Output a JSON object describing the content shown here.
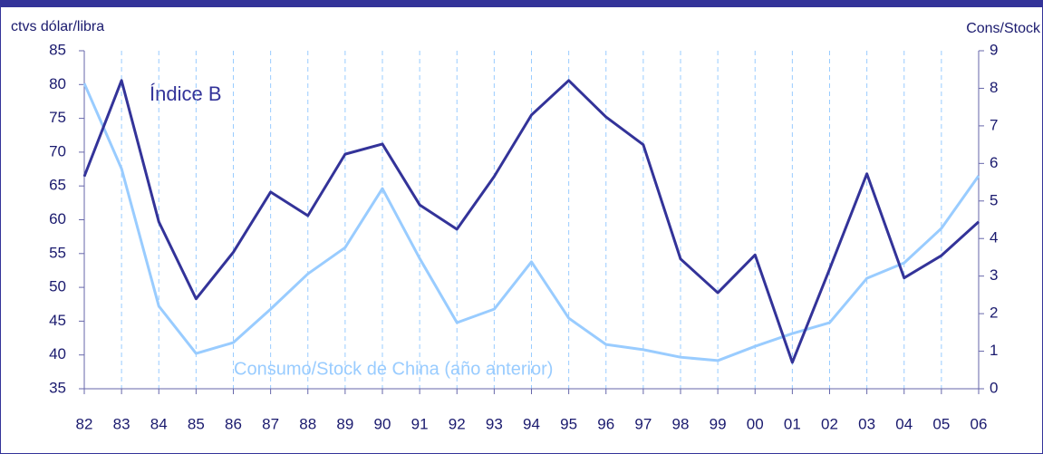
{
  "chart_data": {
    "type": "line",
    "ylabel": "ctvs dólar/libra",
    "y2label": "Cons/Stock",
    "categories": [
      "82",
      "83",
      "84",
      "85",
      "86",
      "87",
      "88",
      "89",
      "90",
      "91",
      "92",
      "93",
      "94",
      "95",
      "96",
      "97",
      "98",
      "99",
      "00",
      "01",
      "02",
      "03",
      "04",
      "05",
      "06"
    ],
    "series": [
      {
        "name": "Índice B",
        "color": "#333399",
        "axis": "y",
        "values": [
          66.4,
          80.6,
          59.7,
          48.3,
          55.2,
          64.1,
          60.6,
          69.7,
          71.2,
          62.2,
          58.6,
          66.4,
          75.5,
          80.6,
          75.2,
          71.1,
          54.2,
          49.2,
          54.8,
          38.9,
          52.7,
          66.8,
          51.4,
          54.7,
          59.7
        ]
      },
      {
        "name": "Consumo/Stock de China (año anterior)",
        "color": "#99ccff",
        "axis": "y2",
        "values": [
          8.13,
          5.86,
          2.2,
          0.94,
          1.23,
          2.12,
          3.06,
          3.76,
          5.33,
          3.47,
          1.76,
          2.12,
          3.38,
          1.88,
          1.18,
          1.04,
          0.84,
          0.75,
          1.13,
          1.47,
          1.76,
          2.94,
          3.35,
          4.27,
          5.67
        ]
      }
    ],
    "ylim": [
      35,
      85
    ],
    "yticks": [
      35,
      40,
      45,
      50,
      55,
      60,
      65,
      70,
      75,
      80,
      85
    ],
    "y2lim": [
      0,
      9
    ],
    "y2ticks": [
      0,
      1,
      2,
      3,
      4,
      5,
      6,
      7,
      8,
      9
    ],
    "grid": true
  }
}
